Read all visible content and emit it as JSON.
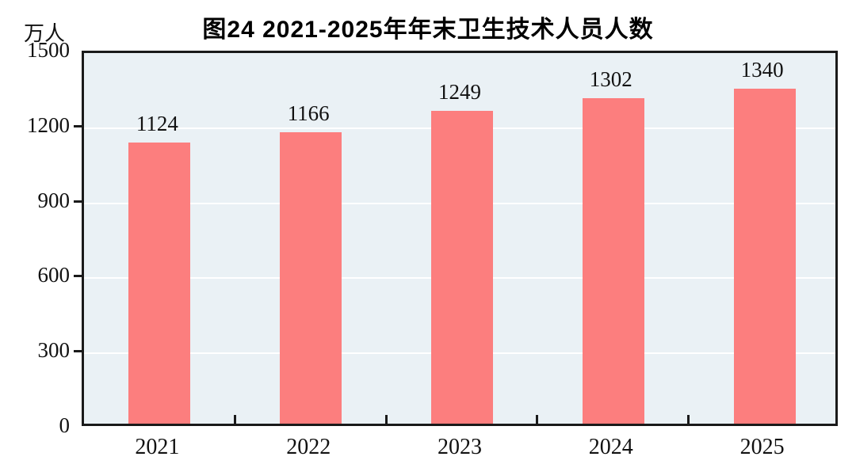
{
  "chart_data": {
    "type": "bar",
    "title": "图24  2021-2025年年末卫生技术人员人数",
    "unit_label": "万人",
    "categories": [
      "2021",
      "2022",
      "2023",
      "2024",
      "2025"
    ],
    "values": [
      1124,
      1166,
      1249,
      1302,
      1340
    ],
    "ylim": [
      0,
      1500
    ],
    "yticks": [
      0,
      300,
      600,
      900,
      1200,
      1500
    ],
    "grid": true,
    "legend": "none",
    "bar_color": "#FC7E7E",
    "plot_background": "#EAF1F5",
    "gridline_color": "#ffffff",
    "border_color": "#1a1a1a"
  }
}
